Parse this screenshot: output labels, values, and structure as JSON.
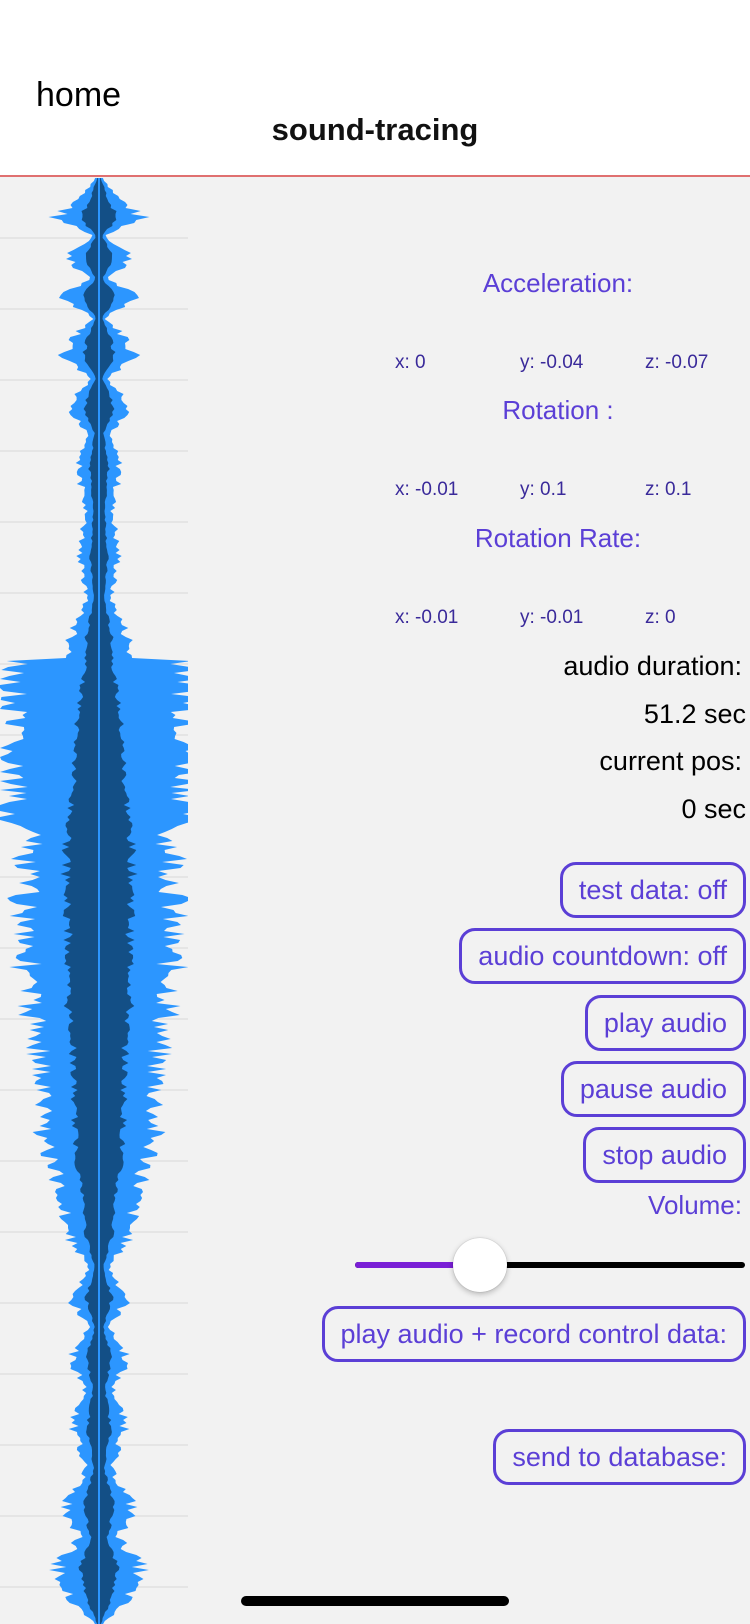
{
  "header": {
    "home_label": "home",
    "title": "sound-tracing",
    "divider_color": "#e07070"
  },
  "sensors": {
    "acceleration": {
      "title": "Acceleration:",
      "x": "x: 0",
      "y": "y: -0.04",
      "z": "z: -0.07"
    },
    "rotation": {
      "title": "Rotation :",
      "x": "x: -0.01",
      "y": "y: 0.1",
      "z": "z: 0.1"
    },
    "rotation_rate": {
      "title": "Rotation Rate:",
      "x": "x: -0.01",
      "y": "y: -0.01",
      "z": "z: 0"
    }
  },
  "audio": {
    "duration_label": "audio duration:",
    "duration_value": "51.2 sec",
    "position_label": "current pos:",
    "position_value": "0 sec"
  },
  "buttons": {
    "test_data": "test data: off",
    "audio_countdown": "audio countdown: off",
    "play_audio": "play audio",
    "pause_audio": "pause audio",
    "stop_audio": "stop audio",
    "play_record": "play audio + record control data:",
    "send_database": "send to database:"
  },
  "volume": {
    "label": "Volume:",
    "level": 0.32
  },
  "colors": {
    "accent": "#5b3fd6",
    "slider_fill": "#7a1fd6",
    "waveform_light": "#2c96ff",
    "waveform_dark": "#134f86"
  }
}
